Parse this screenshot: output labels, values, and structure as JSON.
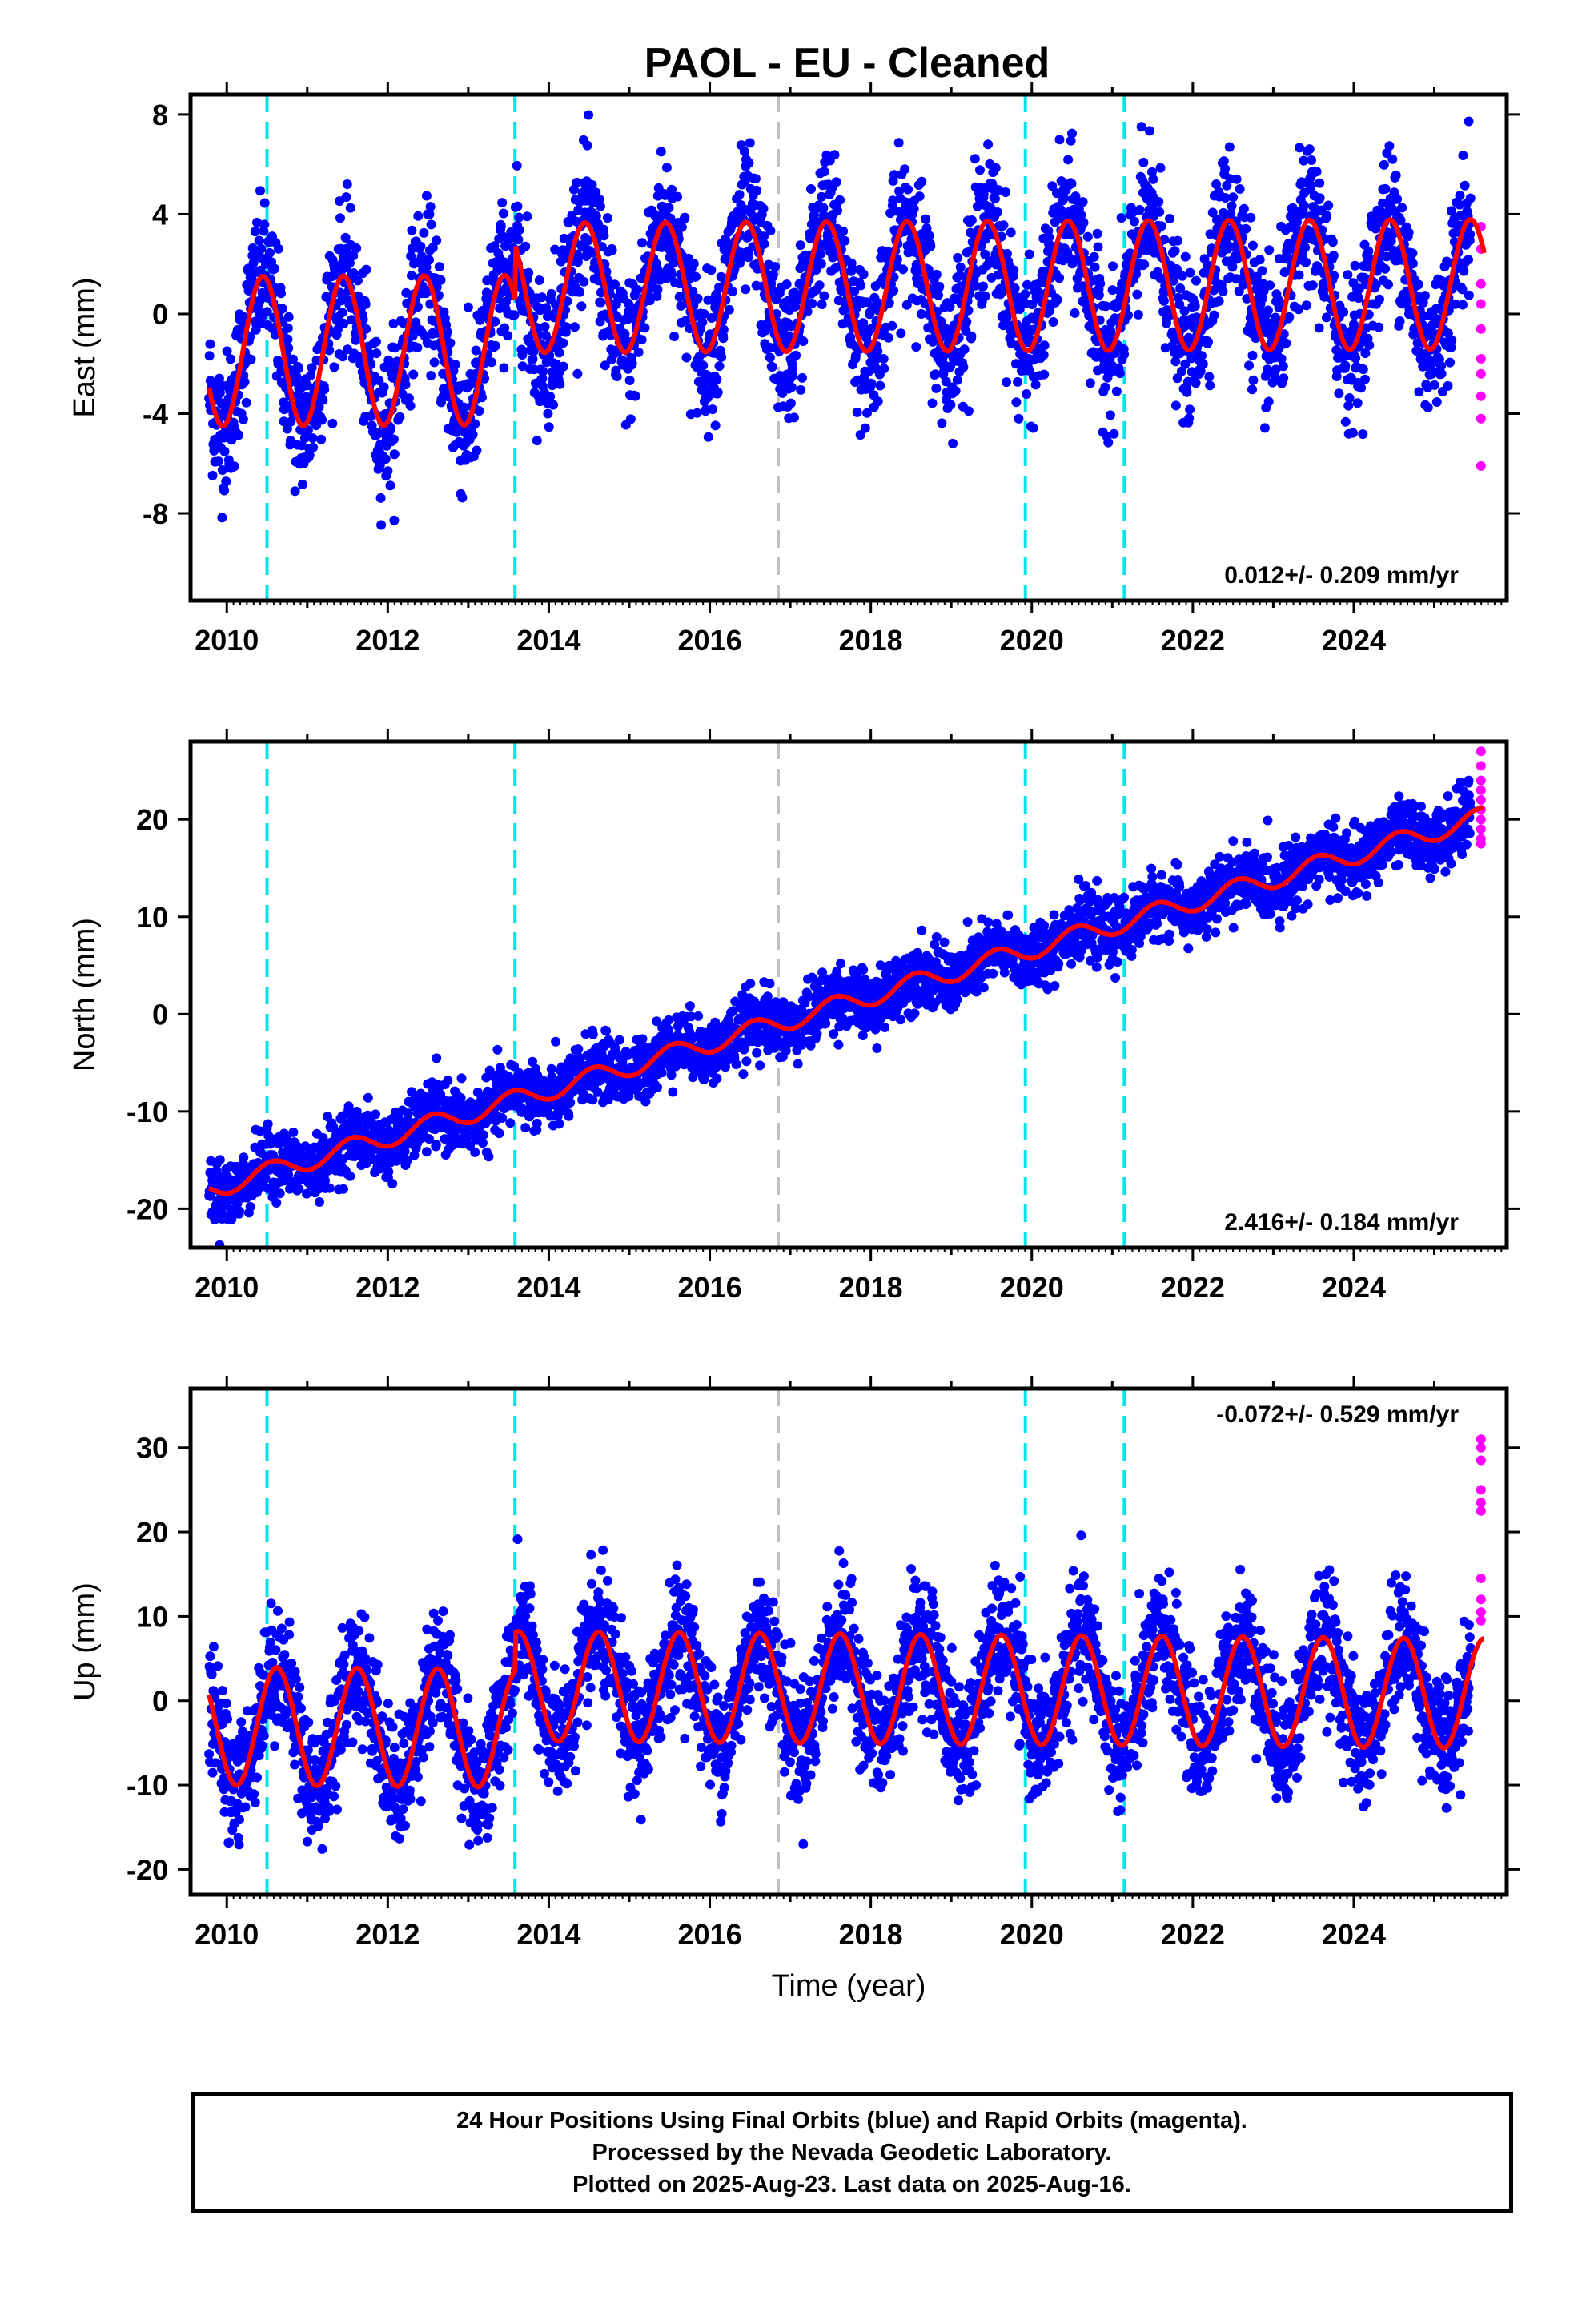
{
  "title": "PAOL  - EU - Cleaned",
  "colors": {
    "final": "#0000ff",
    "rapid": "#ff00ff",
    "model": "#ff0000",
    "break_equipment": "#00e5e5",
    "break_other": "#c0c0c0"
  },
  "footer": {
    "line1": "24 Hour Positions Using Final Orbits (blue) and Rapid Orbits (magenta).",
    "line2": "Processed by the Nevada Geodetic Laboratory.",
    "line3": "Plotted on 2025-Aug-23. Last data on 2025-Aug-16."
  },
  "chart_data": [
    {
      "type": "scatter",
      "component": "east",
      "ylabel": "East (mm)",
      "xlabel": "",
      "xlim": [
        2009.55,
        2025.9
      ],
      "ylim": [
        -11.5,
        8.8
      ],
      "yticks": [
        -8,
        -4,
        0,
        4,
        8
      ],
      "xticks": [
        2010,
        2012,
        2014,
        2016,
        2018,
        2020,
        2022,
        2024
      ],
      "rate_label": "0.012+/- 0.209 mm/yr",
      "rate_position": "bottom-right",
      "data_start": 2009.78,
      "data_end": 2025.62,
      "rapid_start": 2025.45,
      "offset_segments": [
        {
          "start": 2009.78,
          "end": 2013.58,
          "mean": -1.5,
          "amplitude": 3.0
        },
        {
          "start": 2013.58,
          "end": 2025.62,
          "mean": 1.0,
          "amplitude": 2.6
        }
      ],
      "phase_peak_year_fraction": 0.45,
      "trend_mm_per_yr": 0.012,
      "scatter_sd": 1.4,
      "rapid_values": [
        3.5,
        2.6,
        1.2,
        0.4,
        -0.6,
        -1.8,
        -2.4,
        -3.3,
        -4.2,
        -6.1
      ],
      "breaks": [
        {
          "x": 2010.5,
          "kind": "equipment"
        },
        {
          "x": 2013.58,
          "kind": "equipment"
        },
        {
          "x": 2016.85,
          "kind": "other"
        },
        {
          "x": 2019.92,
          "kind": "equipment"
        },
        {
          "x": 2021.15,
          "kind": "equipment"
        }
      ]
    },
    {
      "type": "scatter",
      "component": "north",
      "ylabel": "North (mm)",
      "xlabel": "",
      "xlim": [
        2009.55,
        2025.9
      ],
      "ylim": [
        -24,
        28
      ],
      "yticks": [
        -20,
        -10,
        0,
        10,
        20
      ],
      "xticks": [
        2010,
        2012,
        2014,
        2016,
        2018,
        2020,
        2022,
        2024
      ],
      "rate_label": "2.416+/- 0.184 mm/yr",
      "rate_position": "bottom-right",
      "data_start": 2009.78,
      "data_end": 2025.62,
      "rapid_start": 2025.45,
      "value_at_start": -18.0,
      "trend_mm_per_yr": 2.416,
      "seasonal_amplitude": 1.0,
      "phase_peak_year_fraction": 0.55,
      "scatter_sd": 1.6,
      "rapid_values": [
        27.0,
        25.5,
        24.0,
        23.0,
        22.0,
        21.0,
        20.0,
        19.0,
        18.0,
        17.5
      ],
      "breaks": [
        {
          "x": 2010.5,
          "kind": "equipment"
        },
        {
          "x": 2013.58,
          "kind": "equipment"
        },
        {
          "x": 2016.85,
          "kind": "other"
        },
        {
          "x": 2019.92,
          "kind": "equipment"
        },
        {
          "x": 2021.15,
          "kind": "equipment"
        }
      ]
    },
    {
      "type": "scatter",
      "component": "up",
      "ylabel": "Up (mm)",
      "xlabel": "Time (year)",
      "xlim": [
        2009.55,
        2025.9
      ],
      "ylim": [
        -23,
        37
      ],
      "yticks": [
        -20,
        -10,
        0,
        10,
        20,
        30
      ],
      "xticks": [
        2010,
        2012,
        2014,
        2016,
        2018,
        2020,
        2022,
        2024
      ],
      "rate_label": "-0.072+/- 0.529 mm/yr",
      "rate_position": "top-right",
      "data_start": 2009.78,
      "data_end": 2025.62,
      "rapid_start": 2025.45,
      "offset_segments": [
        {
          "start": 2009.78,
          "end": 2013.58,
          "mean": -3.0,
          "amplitude": 7.0
        },
        {
          "start": 2013.58,
          "end": 2025.62,
          "mean": 2.0,
          "amplitude": 6.5
        }
      ],
      "phase_peak_year_fraction": 0.62,
      "trend_mm_per_yr": -0.072,
      "scatter_sd": 3.6,
      "rapid_values": [
        31.0,
        30.0,
        28.5,
        25.0,
        23.5,
        22.5,
        14.5,
        12.0,
        10.5,
        9.5
      ],
      "breaks": [
        {
          "x": 2010.5,
          "kind": "equipment"
        },
        {
          "x": 2013.58,
          "kind": "equipment"
        },
        {
          "x": 2016.85,
          "kind": "other"
        },
        {
          "x": 2019.92,
          "kind": "equipment"
        },
        {
          "x": 2021.15,
          "kind": "equipment"
        }
      ]
    }
  ]
}
